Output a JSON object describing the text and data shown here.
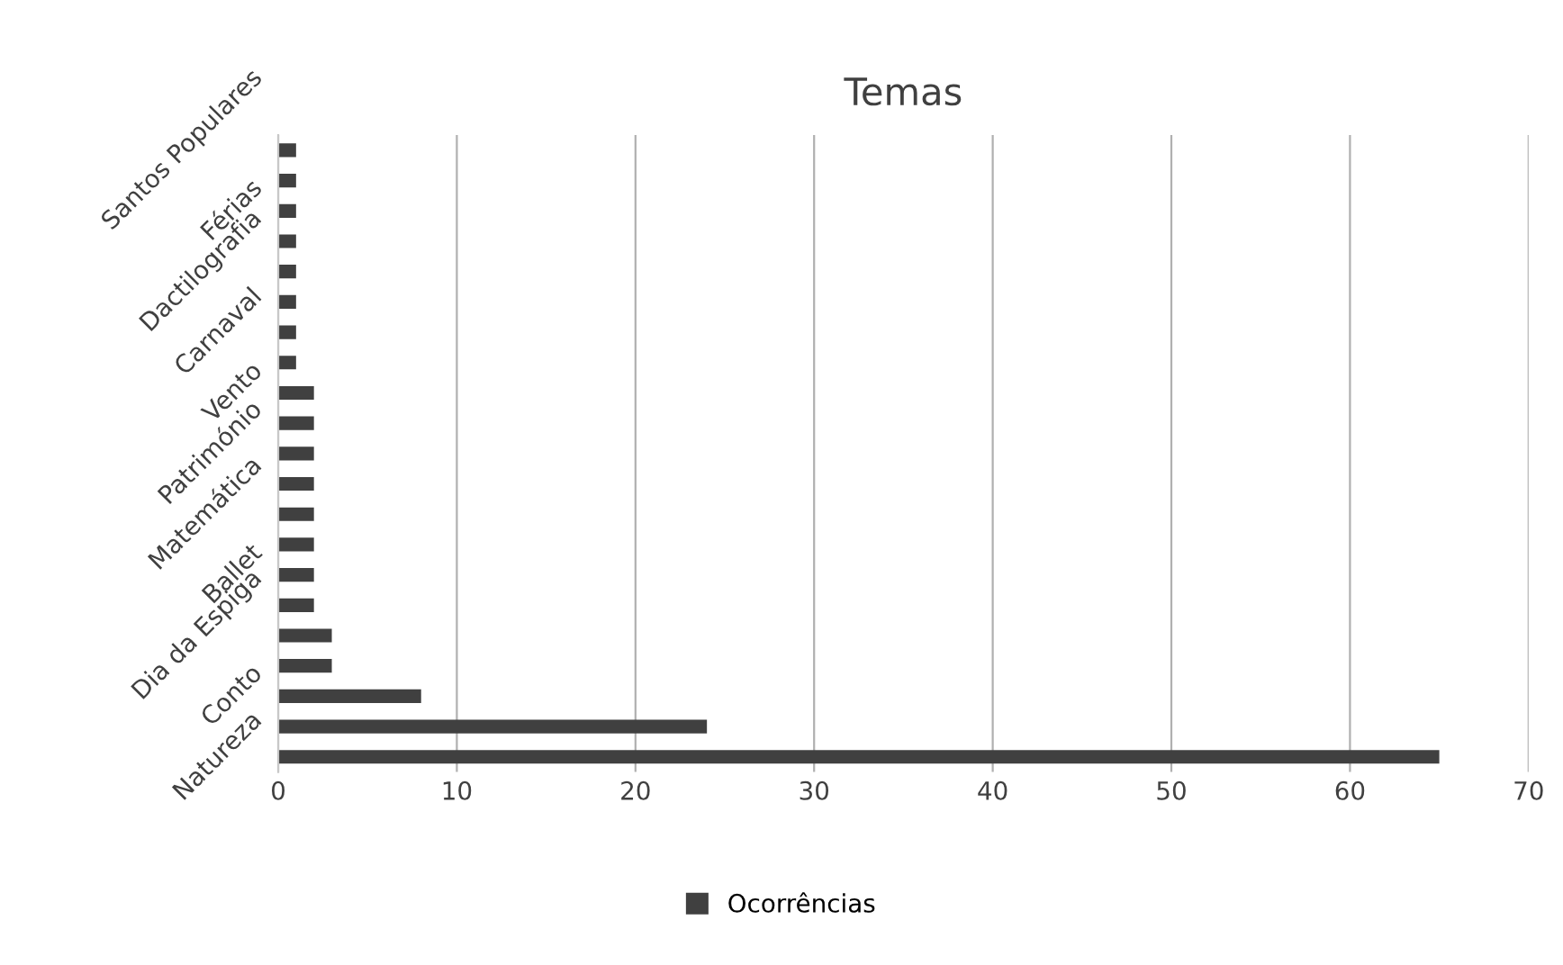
{
  "chart_data": {
    "type": "bar",
    "orientation": "horizontal",
    "title": "Temas",
    "categories": [
      "Santos Populares",
      null,
      "Férias",
      null,
      "Dactilografia",
      null,
      "Carnaval",
      null,
      "Vento",
      null,
      "Património",
      null,
      "Matemática",
      null,
      "Ballet",
      null,
      "Dia da Espiga",
      null,
      "Conto",
      null,
      "Natureza"
    ],
    "series": [
      {
        "name": "Ocorrências",
        "color": "#404040",
        "values": [
          1,
          1,
          1,
          1,
          1,
          1,
          1,
          1,
          2,
          2,
          2,
          2,
          2,
          2,
          2,
          2,
          3,
          3,
          8,
          24,
          65
        ]
      }
    ],
    "xlim": [
      0,
      70
    ],
    "xticks": [
      0,
      10,
      20,
      30,
      40,
      50,
      60,
      70
    ],
    "grid": "x",
    "legend": "bottom"
  }
}
